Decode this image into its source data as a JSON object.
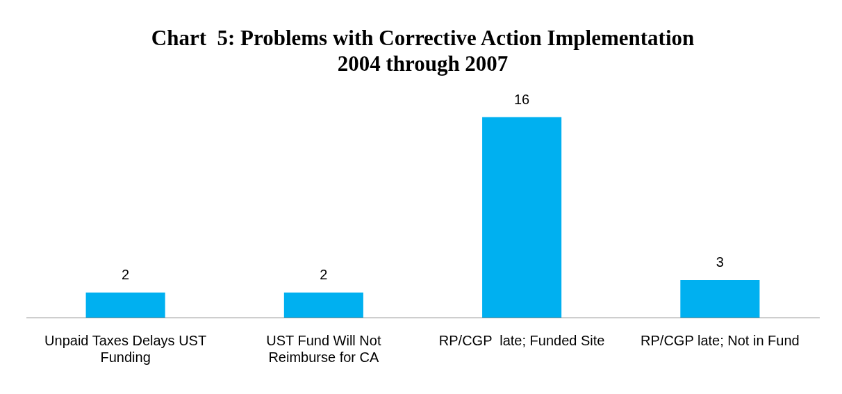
{
  "chart_data": {
    "type": "bar",
    "title": "Chart  5: Problems with Corrective Action Implementation\n2004 through 2007",
    "categories": [
      "Unpaid Taxes Delays UST Funding",
      "UST Fund Will Not Reimburse for CA",
      "RP/CGP  late; Funded Site",
      "RP/CGP late; Not in Fund"
    ],
    "values": [
      2,
      2,
      16,
      3
    ],
    "color": "#00b0f0",
    "data_labels": true,
    "grid": false,
    "legend": false
  }
}
